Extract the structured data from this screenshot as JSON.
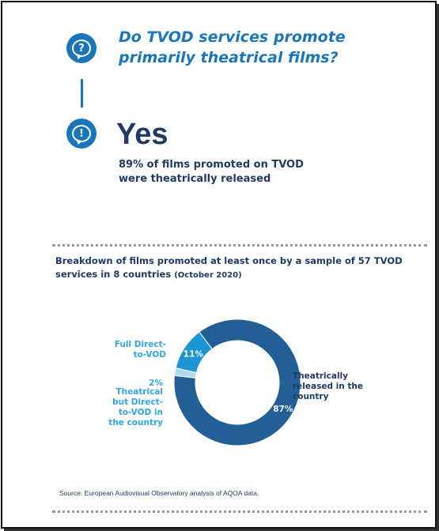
{
  "question": {
    "text": "Do TVOD services promote primarily theatrical films?",
    "icon": "question-bubble-icon"
  },
  "answer": {
    "text": "Yes",
    "detail": "89% of films promoted on TVOD were theatrically released",
    "icon": "exclamation-bubble-icon"
  },
  "breakdown": {
    "title": "Breakdown of films promoted at least once by a sample of 57 TVOD services in 8 countries",
    "date": "(October 2020)"
  },
  "colors": {
    "primary": "#1a75bb",
    "dark_blue": "#235f97",
    "mid_blue": "#1e96d6",
    "light_blue": "#a9dcf3",
    "text_dark": "#1f3b63",
    "text_light_blue": "#2fa8e0"
  },
  "chart_data": {
    "type": "pie",
    "variant": "donut",
    "slices": [
      {
        "label": "Theatrically released in the country",
        "value": 87,
        "value_label": "87%",
        "color": "#235f97"
      },
      {
        "label": "Theatrical but Direct-to-VOD in the country",
        "value": 2,
        "value_label": "2%",
        "color": "#a9dcf3"
      },
      {
        "label": "Full Direct-to-VOD",
        "value": 11,
        "value_label": "11%",
        "color": "#1e96d6"
      }
    ],
    "labels": {
      "theatrical": "Theatrically released in the country",
      "theatrical_dtv_pct": "2%",
      "theatrical_dtv": "Theatrical but Direct-to-VOD in the country",
      "full_dtv": "Full Direct-to-VOD"
    }
  },
  "source": "Source: European Audiovisual Observatory analysis of AQOA data."
}
